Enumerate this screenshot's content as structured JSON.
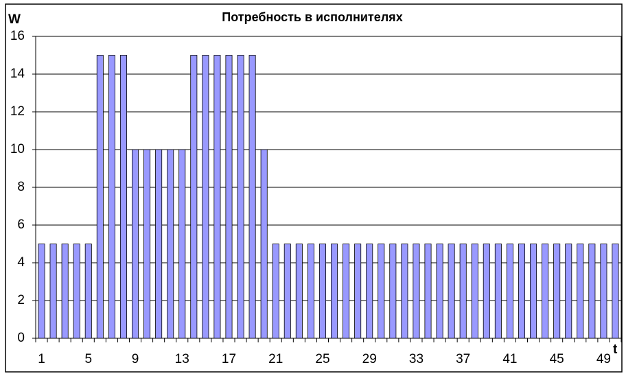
{
  "chart_data": {
    "type": "bar",
    "title": "Потребность в исполнителях",
    "y_label": "W",
    "x_label": "t",
    "categories": [
      "1",
      null,
      null,
      null,
      "5",
      null,
      null,
      null,
      "9",
      null,
      null,
      null,
      "13",
      null,
      null,
      null,
      "17",
      null,
      null,
      null,
      "21",
      null,
      null,
      null,
      "25",
      null,
      null,
      null,
      "29",
      null,
      null,
      null,
      "33",
      null,
      null,
      null,
      "37",
      null,
      null,
      null,
      "41",
      null,
      null,
      null,
      "45",
      null,
      null,
      null,
      "49",
      null
    ],
    "values": [
      5,
      5,
      5,
      5,
      5,
      15,
      15,
      15,
      10,
      10,
      10,
      10,
      10,
      15,
      15,
      15,
      15,
      15,
      15,
      10,
      5,
      5,
      5,
      5,
      5,
      5,
      5,
      5,
      5,
      5,
      5,
      5,
      5,
      5,
      5,
      5,
      5,
      5,
      5,
      5,
      5,
      5,
      5,
      5,
      5,
      5,
      5,
      5,
      5,
      5
    ],
    "color": "#9999ff",
    "ylim": [
      0,
      16
    ],
    "yticks": [
      0,
      2,
      4,
      6,
      8,
      10,
      12,
      14,
      16
    ],
    "grid": true
  }
}
